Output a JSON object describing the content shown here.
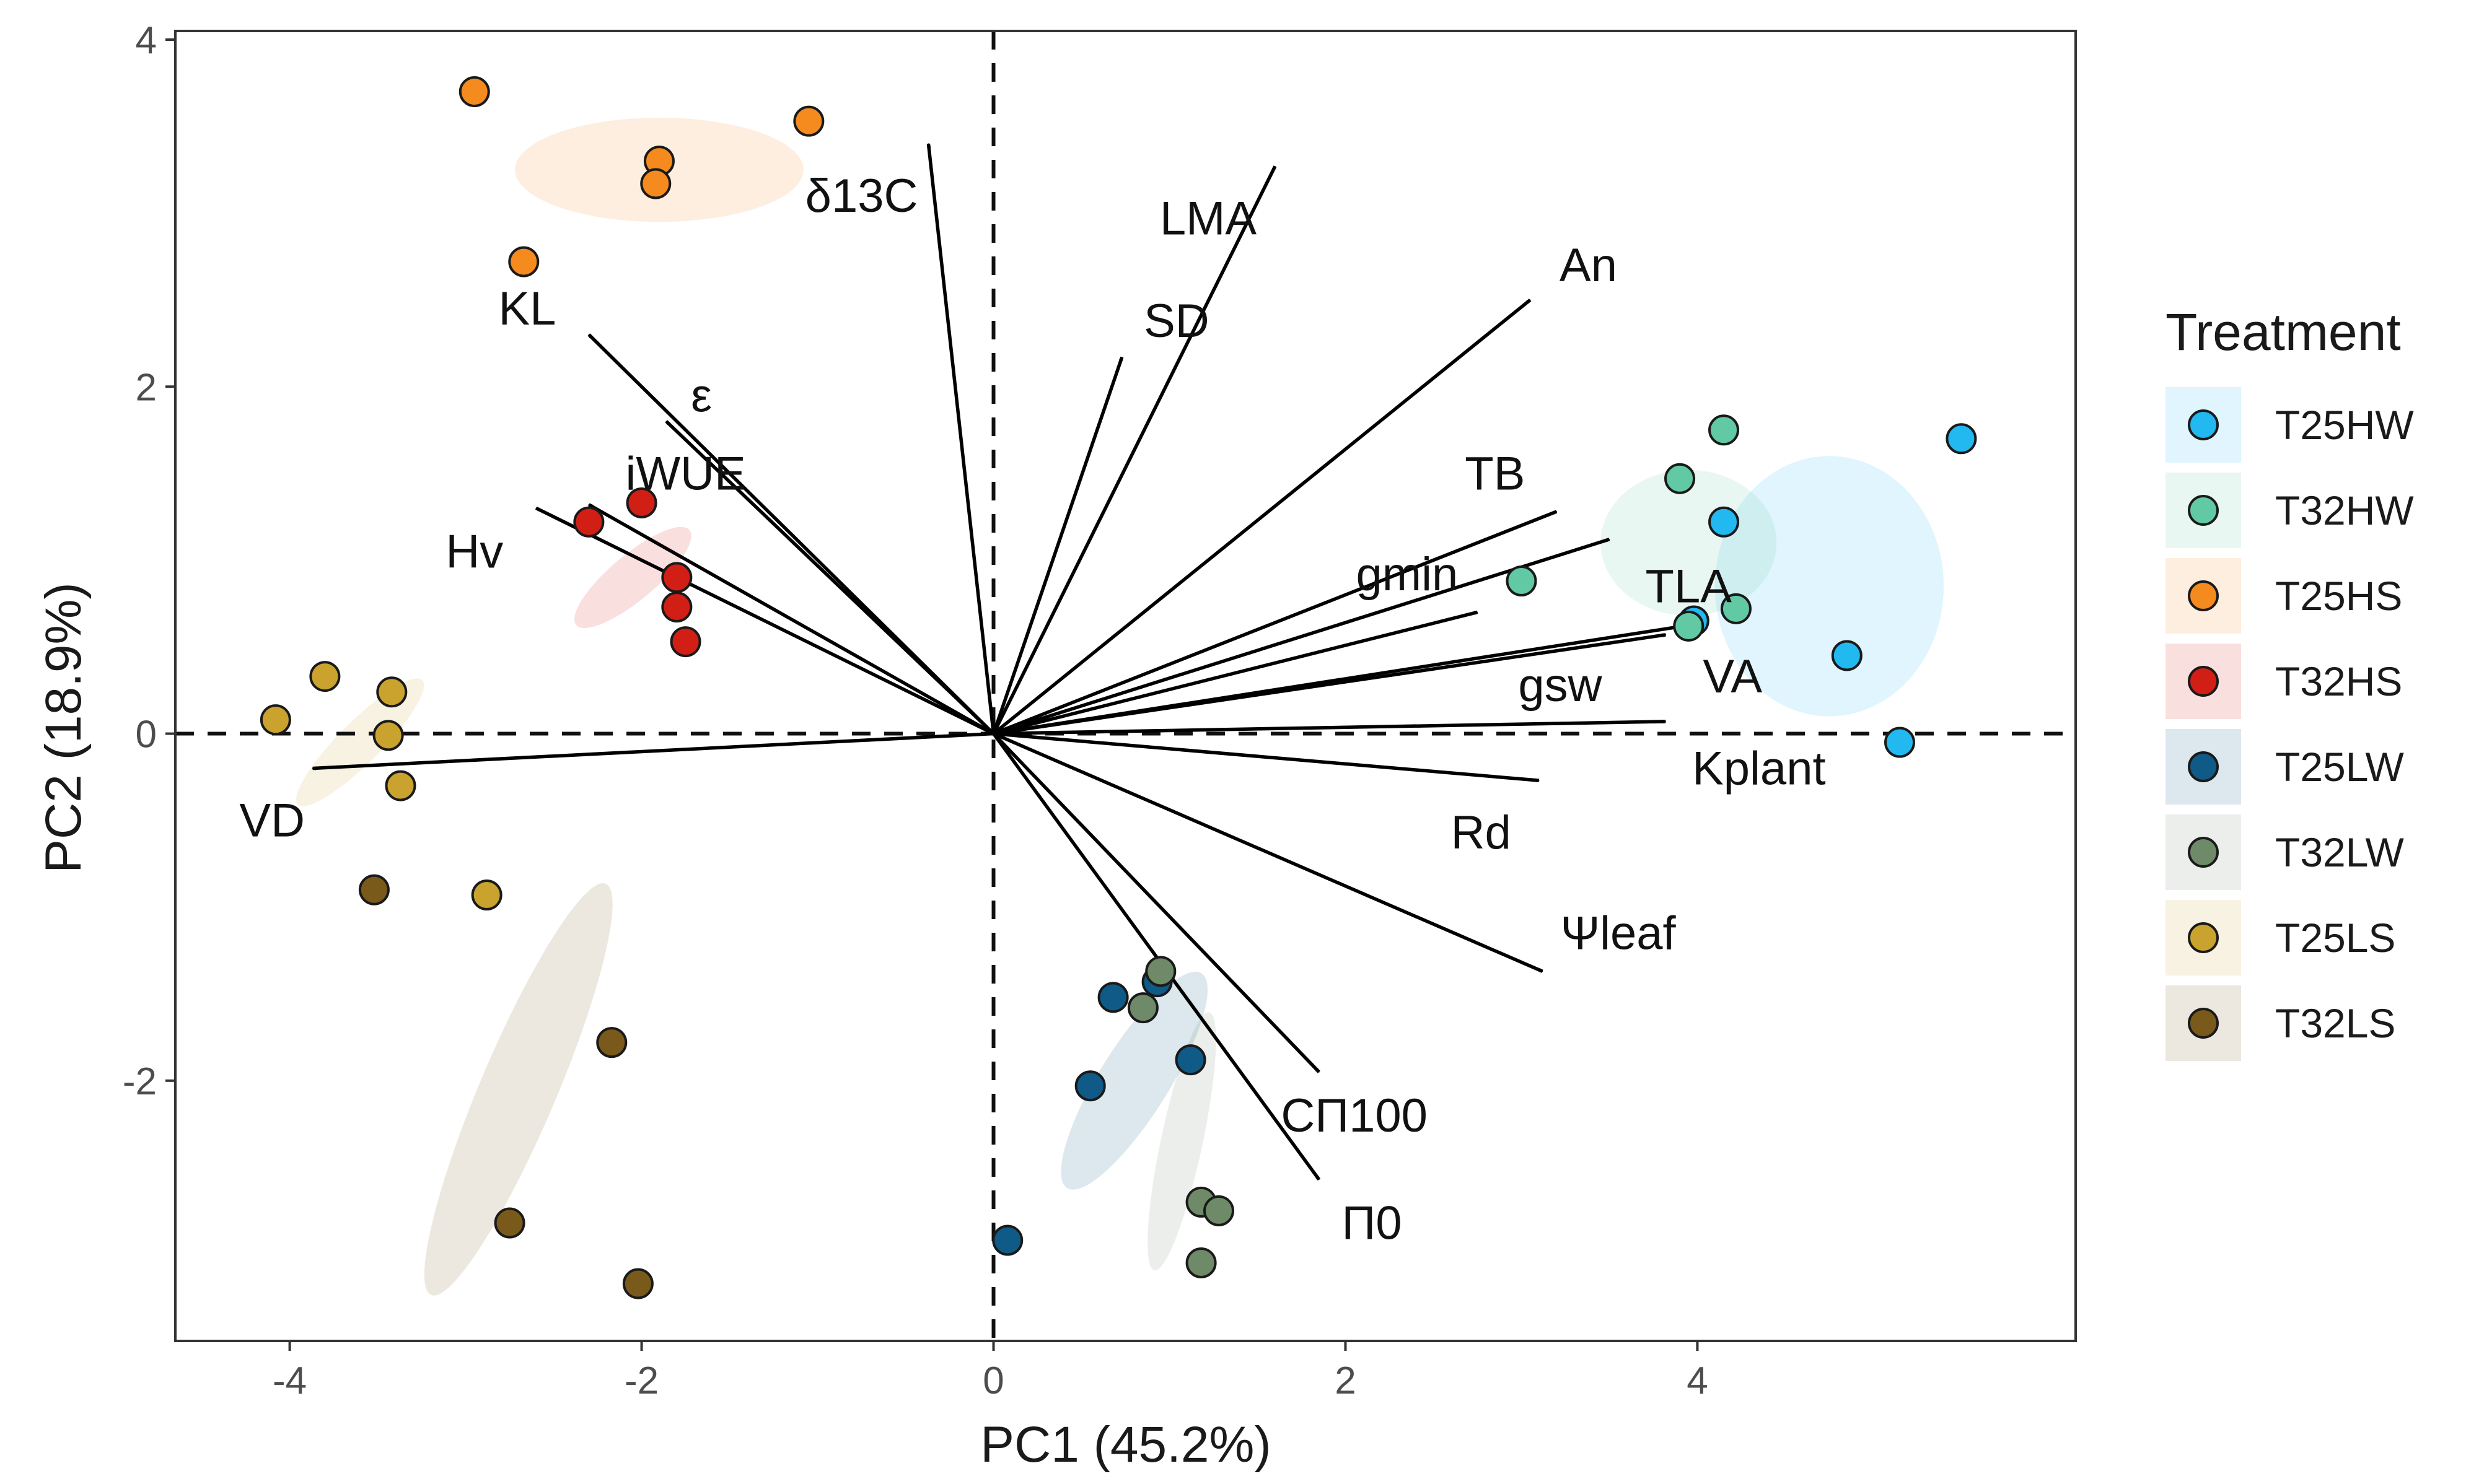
{
  "chart_data": {
    "type": "scatter",
    "subtype": "pca-biplot",
    "xlabel": "PC1 (45.2%)",
    "ylabel": "PC2 (18.9%)",
    "xlim": [
      -4.65,
      6.15
    ],
    "ylim": [
      -3.5,
      4.05
    ],
    "xticks": [
      {
        "value": -4,
        "label": "-4"
      },
      {
        "value": -2,
        "label": "-2"
      },
      {
        "value": 0,
        "label": "0"
      },
      {
        "value": 2,
        "label": "2"
      },
      {
        "value": 4,
        "label": "4"
      }
    ],
    "yticks": [
      {
        "value": -2,
        "label": "-2"
      },
      {
        "value": 0,
        "label": "0"
      },
      {
        "value": 2,
        "label": "2"
      },
      {
        "value": 4,
        "label": "4"
      }
    ],
    "legend": {
      "title": "Treatment",
      "position": "right"
    },
    "series": [
      {
        "name": "T25HW",
        "color": "#22b8f0",
        "ellipse": {
          "cx": 4.75,
          "cy": 0.85,
          "rx": 0.65,
          "ry": 0.75,
          "angle": 0
        },
        "points": [
          [
            5.5,
            1.7
          ],
          [
            4.85,
            0.45
          ],
          [
            5.15,
            -0.05
          ],
          [
            4.15,
            1.22
          ],
          [
            3.98,
            0.65
          ]
        ]
      },
      {
        "name": "T32HW",
        "color": "#62c9a5",
        "ellipse": {
          "cx": 3.95,
          "cy": 1.1,
          "rx": 0.5,
          "ry": 0.42,
          "angle": 0
        },
        "points": [
          [
            4.15,
            1.75
          ],
          [
            3.9,
            1.47
          ],
          [
            3.0,
            0.88
          ],
          [
            4.22,
            0.72
          ],
          [
            3.95,
            0.62
          ]
        ]
      },
      {
        "name": "T25HS",
        "color": "#f58a1e",
        "ellipse": {
          "cx": -1.9,
          "cy": 3.25,
          "rx": 0.82,
          "ry": 0.3,
          "angle": 0
        },
        "points": [
          [
            -2.95,
            3.7
          ],
          [
            -1.05,
            3.53
          ],
          [
            -1.9,
            3.3
          ],
          [
            -1.92,
            3.17
          ],
          [
            -2.67,
            2.72
          ]
        ]
      },
      {
        "name": "T32HS",
        "color": "#d11f16",
        "ellipse": {
          "cx": -2.05,
          "cy": 0.9,
          "rx": 0.42,
          "ry": 0.13,
          "angle": 40
        },
        "points": [
          [
            -2.0,
            1.33
          ],
          [
            -2.3,
            1.22
          ],
          [
            -1.8,
            0.9
          ],
          [
            -1.8,
            0.73
          ],
          [
            -1.75,
            0.53
          ]
        ]
      },
      {
        "name": "T25LW",
        "color": "#0f5a86",
        "ellipse": {
          "cx": 0.8,
          "cy": -2.0,
          "rx": 0.72,
          "ry": 0.2,
          "angle": 58
        },
        "points": [
          [
            0.93,
            -1.43
          ],
          [
            0.68,
            -1.52
          ],
          [
            1.12,
            -1.88
          ],
          [
            0.55,
            -2.03
          ],
          [
            0.08,
            -2.92
          ]
        ]
      },
      {
        "name": "T32LW",
        "color": "#6e8a68",
        "ellipse": {
          "cx": 1.07,
          "cy": -2.35,
          "rx": 0.75,
          "ry": 0.12,
          "angle": 78
        },
        "points": [
          [
            0.95,
            -1.37
          ],
          [
            0.85,
            -1.58
          ],
          [
            1.18,
            -2.7
          ],
          [
            1.28,
            -2.75
          ],
          [
            1.18,
            -3.05
          ]
        ]
      },
      {
        "name": "T25LS",
        "color": "#caa32f",
        "ellipse": {
          "cx": -3.6,
          "cy": -0.05,
          "rx": 0.5,
          "ry": 0.12,
          "angle": 45
        },
        "points": [
          [
            -4.08,
            0.08
          ],
          [
            -3.8,
            0.33
          ],
          [
            -3.42,
            0.24
          ],
          [
            -3.44,
            -0.01
          ],
          [
            -3.37,
            -0.3
          ],
          [
            -2.88,
            -0.93
          ]
        ]
      },
      {
        "name": "T32LS",
        "color": "#7a5a1a",
        "ellipse": {
          "cx": -2.7,
          "cy": -2.05,
          "rx": 1.27,
          "ry": 0.22,
          "angle": 67
        },
        "points": [
          [
            -3.52,
            -0.9
          ],
          [
            -2.17,
            -1.78
          ],
          [
            -2.75,
            -2.82
          ],
          [
            -2.02,
            -3.17
          ]
        ]
      }
    ],
    "loadings": [
      {
        "name": "δ13C",
        "x": -0.37,
        "y": 3.4,
        "lx": -0.75,
        "ly": 3.1
      },
      {
        "name": "LMA",
        "x": 1.6,
        "y": 3.27,
        "lx": 1.22,
        "ly": 2.97
      },
      {
        "name": "SD",
        "x": 0.73,
        "y": 2.17,
        "lx": 1.04,
        "ly": 2.38
      },
      {
        "name": "An",
        "x": 3.05,
        "y": 2.5,
        "lx": 3.38,
        "ly": 2.7
      },
      {
        "name": "KL",
        "x": -2.3,
        "y": 2.3,
        "lx": -2.65,
        "ly": 2.45
      },
      {
        "name": "ε",
        "x": -1.86,
        "y": 1.8,
        "lx": -1.66,
        "ly": 1.95
      },
      {
        "name": "iWUE",
        "x": -2.3,
        "y": 1.32,
        "lx": -1.75,
        "ly": 1.5
      },
      {
        "name": "Hv",
        "x": -2.6,
        "y": 1.3,
        "lx": -2.95,
        "ly": 1.05
      },
      {
        "name": "TB",
        "x": 3.2,
        "y": 1.28,
        "lx": 2.85,
        "ly": 1.5
      },
      {
        "name": "gmin",
        "x": 2.75,
        "y": 0.7,
        "lx": 2.35,
        "ly": 0.92
      },
      {
        "name": "TLA",
        "x": 3.5,
        "y": 1.12,
        "lx": 3.95,
        "ly": 0.85
      },
      {
        "name": "gsw",
        "x": 3.82,
        "y": 0.57,
        "lx": 3.22,
        "ly": 0.28
      },
      {
        "name": "VA",
        "x": 3.92,
        "y": 0.62,
        "lx": 4.2,
        "ly": 0.33
      },
      {
        "name": "Kplant",
        "x": 3.82,
        "y": 0.07,
        "lx": 4.35,
        "ly": -0.2
      },
      {
        "name": "Rd",
        "x": 3.1,
        "y": -0.27,
        "lx": 2.77,
        "ly": -0.57
      },
      {
        "name": "VD",
        "x": -3.87,
        "y": -0.2,
        "lx": -4.1,
        "ly": -0.5
      },
      {
        "name": "Ψleaf",
        "x": 3.12,
        "y": -1.37,
        "lx": 3.55,
        "ly": -1.15
      },
      {
        "name": "CΠ100",
        "x": 1.85,
        "y": -1.95,
        "lx": 2.05,
        "ly": -2.2
      },
      {
        "name": "Π0",
        "x": 1.85,
        "y": -2.57,
        "lx": 2.15,
        "ly": -2.82
      }
    ]
  }
}
